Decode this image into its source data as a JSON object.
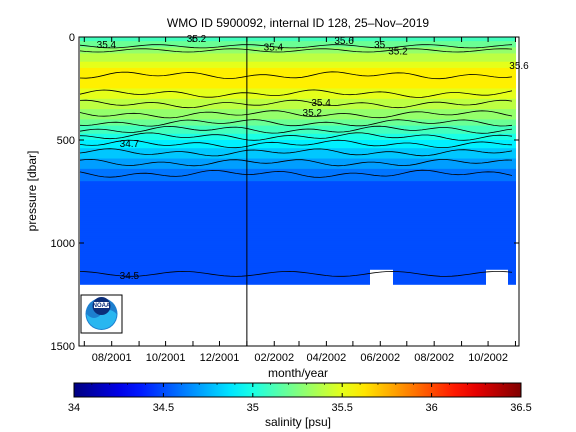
{
  "chart_data": {
    "type": "heatmap",
    "title": "WMO ID 5900092, internal ID 128, 25–Nov–2019",
    "xlabel": "month/year",
    "ylabel": "pressure [dbar]",
    "x_ticks": [
      "08/2001",
      "10/2001",
      "12/2001",
      "02/2002",
      "04/2002",
      "06/2002",
      "08/2002",
      "10/2002"
    ],
    "y_ticks": [
      "0",
      "500",
      "1000",
      "1500"
    ],
    "ylim": [
      1500,
      0
    ],
    "y_axis_reversed": true,
    "colorbar": {
      "label": "salinity [psu]",
      "ticks": [
        "34",
        "34.5",
        "35",
        "35.5",
        "36",
        "36.5"
      ],
      "range": [
        34,
        36.5
      ],
      "colormap": "jet"
    },
    "profile_depth_max": 1200,
    "vertical_marker_date": "2002-01-01",
    "salinity_profile": [
      {
        "pressure": 0,
        "salinity": 35.1
      },
      {
        "pressure": 50,
        "salinity": 35.25
      },
      {
        "pressure": 100,
        "salinity": 35.4
      },
      {
        "pressure": 150,
        "salinity": 35.55
      },
      {
        "pressure": 200,
        "salinity": 35.62
      },
      {
        "pressure": 250,
        "salinity": 35.55
      },
      {
        "pressure": 300,
        "salinity": 35.45
      },
      {
        "pressure": 350,
        "salinity": 35.35
      },
      {
        "pressure": 400,
        "salinity": 35.25
      },
      {
        "pressure": 450,
        "salinity": 35.1
      },
      {
        "pressure": 500,
        "salinity": 34.95
      },
      {
        "pressure": 550,
        "salinity": 34.82
      },
      {
        "pressure": 600,
        "salinity": 34.72
      },
      {
        "pressure": 650,
        "salinity": 34.62
      },
      {
        "pressure": 700,
        "salinity": 34.55
      },
      {
        "pressure": 800,
        "salinity": 34.52
      },
      {
        "pressure": 1000,
        "salinity": 34.5
      },
      {
        "pressure": 1150,
        "salinity": 34.48
      },
      {
        "pressure": 1200,
        "salinity": 34.45
      }
    ],
    "contour_labels": [
      {
        "text": "35.4",
        "date": "2001-07-15",
        "pressure": 40
      },
      {
        "text": "35.2",
        "date": "2001-10-25",
        "pressure": 10
      },
      {
        "text": "35.4",
        "date": "2002-01-20",
        "pressure": 50
      },
      {
        "text": "35.6",
        "date": "2002-04-10",
        "pressure": 20
      },
      {
        "text": "35",
        "date": "2002-05-25",
        "pressure": 40
      },
      {
        "text": "35.2",
        "date": "2002-06-10",
        "pressure": 70
      },
      {
        "text": "35.6",
        "date": "2002-10-25",
        "pressure": 140
      },
      {
        "text": "35.4",
        "date": "2002-03-15",
        "pressure": 320
      },
      {
        "text": "35.2",
        "date": "2002-03-05",
        "pressure": 370
      },
      {
        "text": "34.7",
        "date": "2001-08-10",
        "pressure": 520
      },
      {
        "text": "34.5",
        "date": "2001-08-10",
        "pressure": 1160
      }
    ],
    "logo": {
      "text": "NOAA"
    }
  }
}
